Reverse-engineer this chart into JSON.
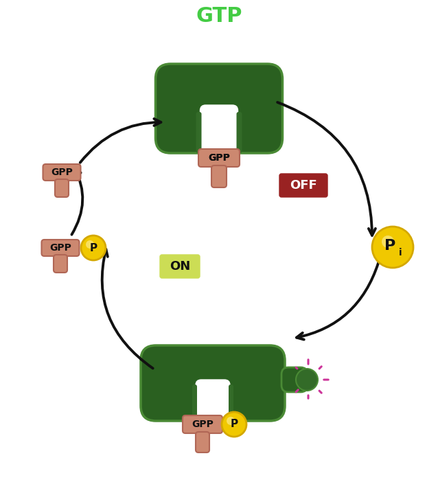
{
  "background_color": "#ffffff",
  "gtp_label": "GTP",
  "gtp_color": "#44cc44",
  "gpp_label": "GPP",
  "p_label": "P",
  "pi_label": "P",
  "pi_sub": "i",
  "on_label": "ON",
  "off_label": "OFF",
  "on_color": "#ccdd55",
  "off_color": "#992222",
  "protein_dark": "#2a6020",
  "protein_mid": "#336b28",
  "protein_light": "#4a8a35",
  "gpp_color": "#cc8870",
  "gpp_dark": "#b06655",
  "gpp_shadow": "#9a5040",
  "yellow_color": "#f0c800",
  "yellow_dark": "#d4a800",
  "yellow_light": "#f8e060",
  "arrow_color": "#111111",
  "magenta_color": "#cc3399",
  "text_color": "#111111",
  "white": "#ffffff"
}
